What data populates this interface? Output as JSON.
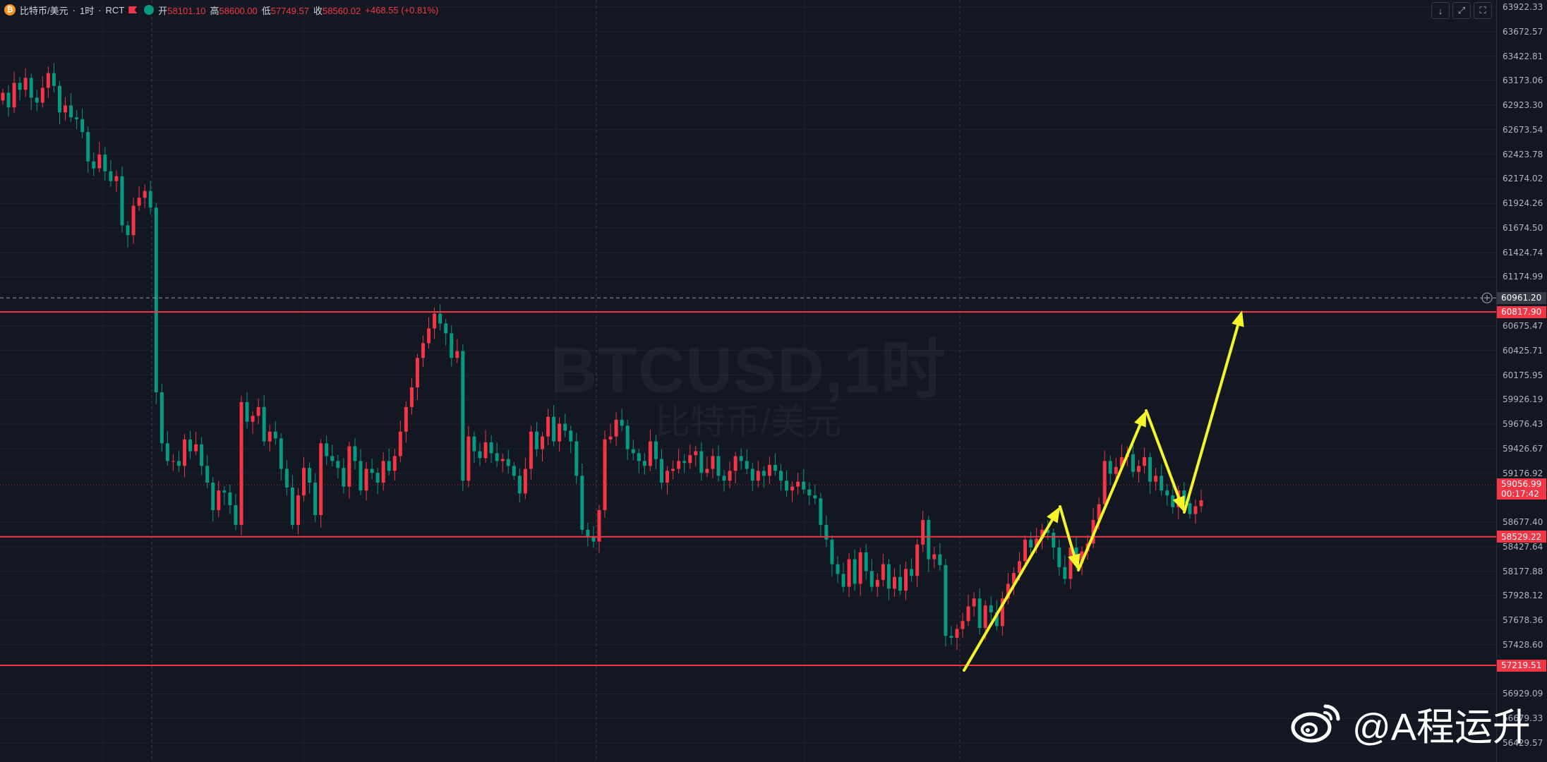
{
  "legend": {
    "coin_symbol": "₿",
    "symbol": "比特币/美元",
    "timeframe": "1时",
    "source": "RCT",
    "open_label": "开",
    "open": "58101.10",
    "high_label": "高",
    "high": "58600.00",
    "low_label": "低",
    "low": "57749.57",
    "close_label": "收",
    "close": "58560.02",
    "change": "+468.55 (+0.81%)"
  },
  "window_buttons": [
    "↓",
    "⤢",
    "⛶"
  ],
  "watermark": {
    "title": "BTCUSD,1时",
    "subtitle": "比特币/美元"
  },
  "price_axis": {
    "labels": [
      "63922.33",
      "63672.57",
      "63422.81",
      "63173.06",
      "62923.30",
      "62673.54",
      "62423.78",
      "62174.02",
      "61924.26",
      "61674.50",
      "61424.74",
      "61174.99",
      "60675.47",
      "60425.71",
      "60175.95",
      "59926.19",
      "59676.43",
      "59426.67",
      "59176.92",
      "58677.40",
      "58427.64",
      "58177.88",
      "57928.12",
      "57678.36",
      "57428.60",
      "56929.09",
      "56679.33",
      "56429.57"
    ],
    "crosshair_price": "60961.20",
    "levels": [
      "60817.90",
      "58529.22",
      "57219.51"
    ],
    "current_price": "59056.99",
    "countdown": "00:17:42"
  },
  "colors": {
    "background": "#131722",
    "up": "#f23645",
    "down": "#089981",
    "level_line": "#f23645",
    "arrow": "#f5f52a",
    "grid": "#1e222d"
  },
  "weibo": {
    "handle": "@A程运升"
  },
  "chart_data": {
    "type": "candlestick",
    "symbol": "BTCUSD",
    "interval": "1h",
    "ylim": [
      56429.57,
      63922.33
    ],
    "horizontal_levels": [
      60817.9,
      58529.22,
      57219.51
    ],
    "current_price": 59056.99,
    "crosshair_price": 60961.2,
    "closes": [
      63050,
      62900,
      63150,
      63080,
      63200,
      63000,
      62950,
      63100,
      63250,
      63120,
      62850,
      62920,
      62800,
      62780,
      62650,
      62350,
      62280,
      62420,
      62250,
      62150,
      62200,
      61700,
      61600,
      61900,
      61980,
      62050,
      61880,
      60000,
      59480,
      59300,
      59300,
      59250,
      59520,
      59400,
      59470,
      59250,
      59080,
      58800,
      59000,
      58980,
      58850,
      58650,
      59900,
      59700,
      59760,
      59850,
      59500,
      59600,
      59530,
      59220,
      59030,
      58650,
      58950,
      59230,
      59080,
      58750,
      59480,
      59350,
      59300,
      59230,
      59040,
      59450,
      59300,
      59000,
      59220,
      59180,
      59080,
      59300,
      59200,
      59350,
      59600,
      59850,
      60050,
      60350,
      60500,
      60650,
      60800,
      60700,
      60600,
      60350,
      60420,
      59100,
      59550,
      59400,
      59330,
      59490,
      59380,
      59300,
      59320,
      59250,
      59150,
      58970,
      59220,
      59600,
      59420,
      59550,
      59750,
      59500,
      59680,
      59610,
      59500,
      59150,
      58600,
      58530,
      58480,
      58800,
      59520,
      59550,
      59720,
      59660,
      59420,
      59380,
      59300,
      59250,
      59500,
      59320,
      59080,
      59200,
      59220,
      59300,
      59280,
      59360,
      59400,
      59180,
      59220,
      59350,
      59150,
      59100,
      59200,
      59350,
      59300,
      59220,
      59100,
      59200,
      59150,
      59260,
      59200,
      59100,
      59000,
      59040,
      59090,
      59010,
      58950,
      58920,
      58650,
      58500,
      58250,
      58150,
      58020,
      58300,
      58050,
      58370,
      58180,
      58020,
      58090,
      58250,
      58000,
      58120,
      57980,
      58200,
      58130,
      58450,
      58700,
      58300,
      58350,
      58240,
      57520,
      57500,
      57590,
      57670,
      57820,
      57900,
      57600,
      57830,
      57760,
      57620,
      57900,
      58050,
      58160,
      58280,
      58500,
      58420,
      58510,
      58600,
      58570,
      58420,
      58220,
      58100,
      58420,
      58260,
      58380,
      58460,
      58700,
      58860,
      59300,
      59170,
      59240,
      59340,
      59370,
      59190,
      59250,
      59340,
      59090,
      59150,
      59000,
      58950,
      58830,
      59000,
      58870,
      58760,
      58840,
      58900
    ]
  }
}
